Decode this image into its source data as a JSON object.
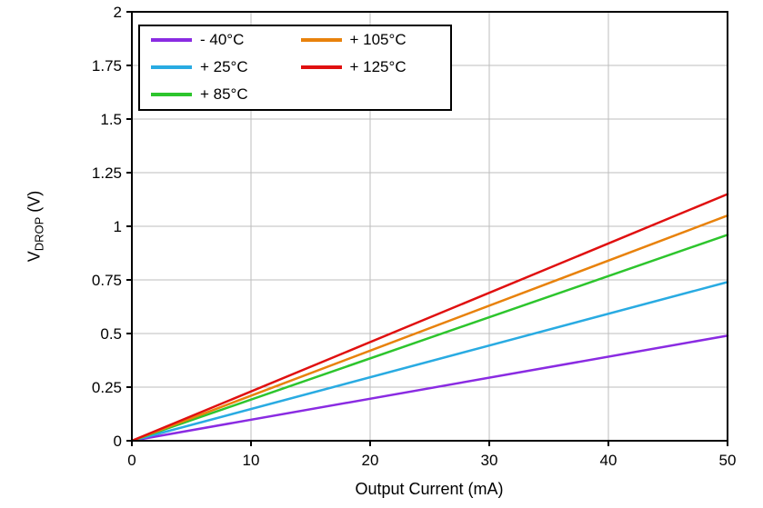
{
  "chart": {
    "xlabel": "Output Current (mA)",
    "ylabel_base": "V",
    "ylabel_sub": "DROP",
    "ylabel_unit": " (V)"
  },
  "chart_data": {
    "type": "line",
    "title": "",
    "xlabel": "Output Current (mA)",
    "ylabel": "V_DROP (V)",
    "xlim": [
      0,
      50
    ],
    "ylim": [
      0,
      2
    ],
    "x_ticks": [
      0,
      10,
      20,
      30,
      40,
      50
    ],
    "x_tick_labels": [
      "0",
      "10",
      "20",
      "30",
      "40",
      "50"
    ],
    "y_ticks": [
      0,
      0.25,
      0.5,
      0.75,
      1,
      1.25,
      1.5,
      1.75,
      2
    ],
    "y_tick_labels": [
      "0",
      "0.25",
      "0.5",
      "0.75",
      "1",
      "1.25",
      "1.5",
      "1.75",
      "2"
    ],
    "grid": true,
    "grid_color": "#BEBEBE",
    "legend_position": "top-left",
    "series": [
      {
        "name": "- 40°C",
        "color": "#8A2BE2",
        "x": [
          0,
          50
        ],
        "y": [
          0,
          0.49
        ]
      },
      {
        "name": "+ 25°C",
        "color": "#29ABE2",
        "x": [
          0,
          50
        ],
        "y": [
          0,
          0.74
        ]
      },
      {
        "name": "+ 85°C",
        "color": "#2DC52D",
        "x": [
          0,
          50
        ],
        "y": [
          0,
          0.96
        ]
      },
      {
        "name": "+ 105°C",
        "color": "#E8820C",
        "x": [
          0,
          50
        ],
        "y": [
          0,
          1.05
        ]
      },
      {
        "name": "+ 125°C",
        "color": "#E01010",
        "x": [
          0,
          50
        ],
        "y": [
          0,
          1.15
        ]
      }
    ]
  }
}
